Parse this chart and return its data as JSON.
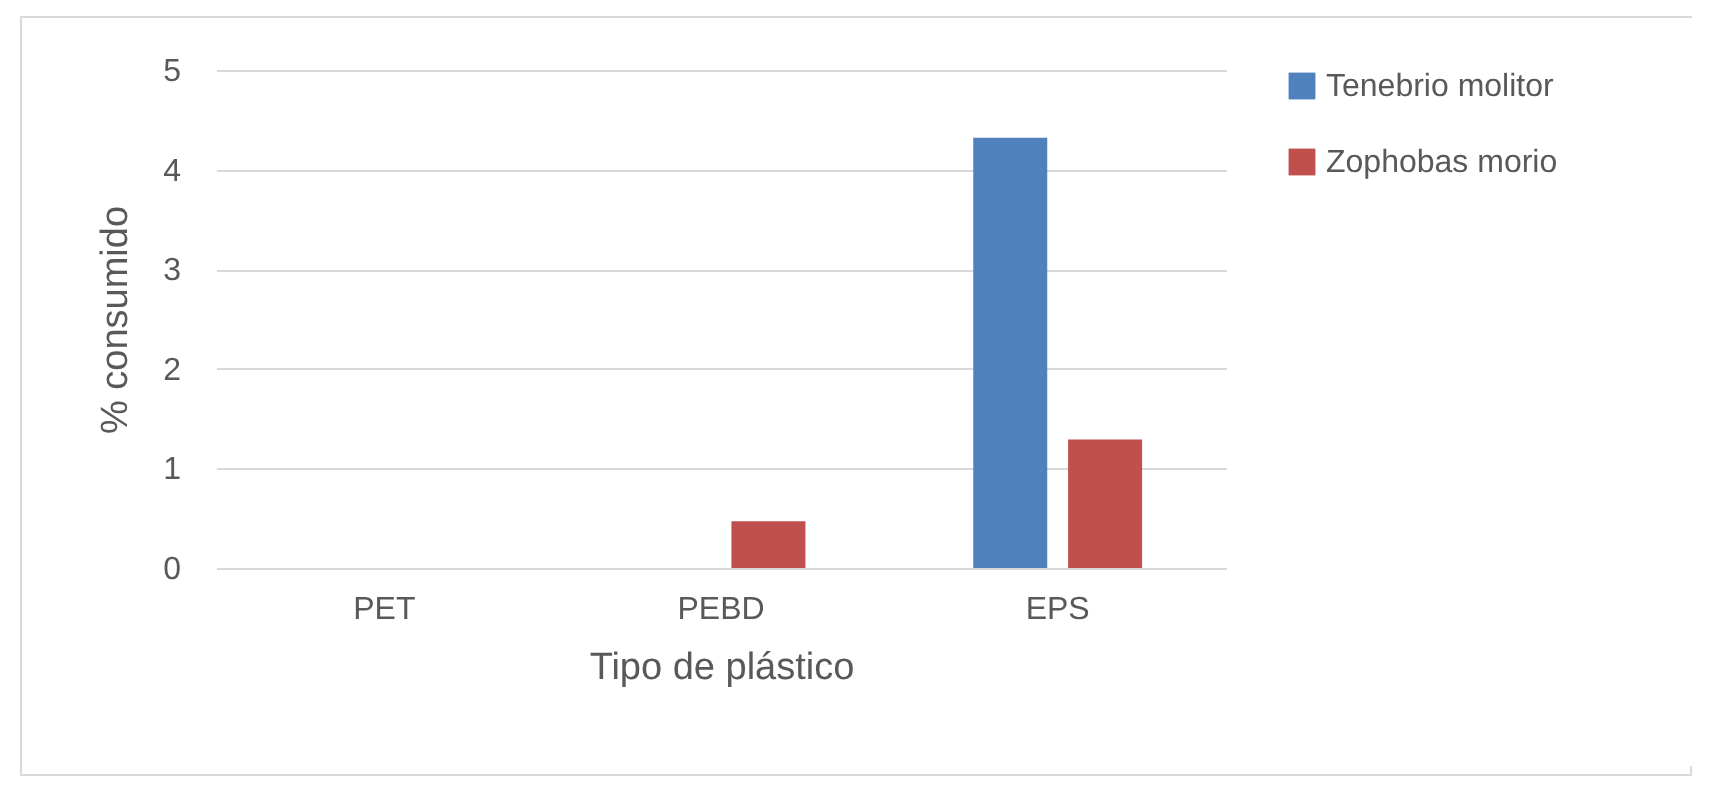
{
  "chart_data": {
    "type": "bar",
    "xlabel": "Tipo de plástico",
    "ylabel": "% consumido",
    "categories": [
      "PET",
      "PEBD",
      "EPS"
    ],
    "series": [
      {
        "name": "Tenebrio molitor",
        "color": "#4f81bd",
        "values": [
          0,
          0,
          4.32
        ]
      },
      {
        "name": "Zophobas morio",
        "color": "#c0504d",
        "values": [
          0,
          0.47,
          1.29
        ]
      }
    ],
    "ylim": [
      0,
      5
    ],
    "yticks": [
      0,
      1,
      2,
      3,
      4,
      5
    ],
    "grid": "y",
    "legend": "right"
  }
}
